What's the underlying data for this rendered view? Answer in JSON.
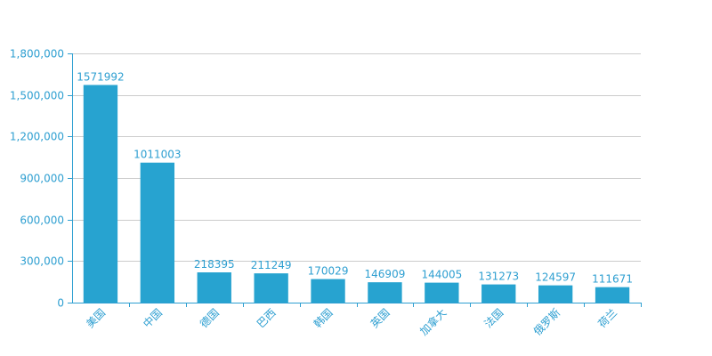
{
  "chart_data": {
    "type": "bar",
    "categories": [
      "美国",
      "中国",
      "德国",
      "巴西",
      "韩国",
      "英国",
      "加拿大",
      "法国",
      "俄罗斯",
      "荷兰"
    ],
    "values": [
      1571992,
      1011003,
      218395,
      211249,
      170029,
      146909,
      144005,
      131273,
      124597,
      111671
    ],
    "data_labels": [
      "1571992",
      "1011003",
      "218395",
      "211249",
      "170029",
      "146909",
      "144005",
      "131273",
      "124597",
      "111671"
    ],
    "ylim": [
      0,
      1800000
    ],
    "yticks": [
      0,
      300000,
      600000,
      900000,
      1200000,
      1500000,
      1800000
    ],
    "ytick_labels": [
      "0",
      "300,000",
      "600,000",
      "900,000",
      "1,200,000",
      "1,500,000",
      "1,800,000"
    ],
    "grid": true,
    "colors": {
      "bar": "#27a3d0",
      "axis": "#2e9fd1",
      "grid": "#cccccc",
      "text": "#2e9fd1"
    }
  }
}
